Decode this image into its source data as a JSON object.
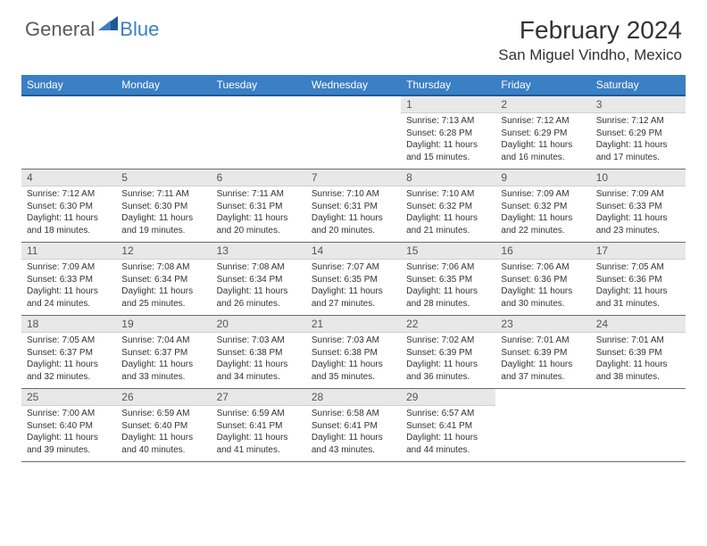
{
  "logo": {
    "general": "General",
    "blue": "Blue"
  },
  "header": {
    "month": "February 2024",
    "location": "San Miguel Vindho, Mexico"
  },
  "colors": {
    "header_bg": "#3b7fc4",
    "header_border": "#1d5a96",
    "daynum_bg": "#e8e8e8",
    "row_border": "#6b6b6b",
    "text": "#333333"
  },
  "day_names": [
    "Sunday",
    "Monday",
    "Tuesday",
    "Wednesday",
    "Thursday",
    "Friday",
    "Saturday"
  ],
  "weeks": [
    [
      {
        "empty": true
      },
      {
        "empty": true
      },
      {
        "empty": true
      },
      {
        "empty": true
      },
      {
        "num": "1",
        "sunrise": "7:13 AM",
        "sunset": "6:28 PM",
        "daylight": "11 hours and 15 minutes."
      },
      {
        "num": "2",
        "sunrise": "7:12 AM",
        "sunset": "6:29 PM",
        "daylight": "11 hours and 16 minutes."
      },
      {
        "num": "3",
        "sunrise": "7:12 AM",
        "sunset": "6:29 PM",
        "daylight": "11 hours and 17 minutes."
      }
    ],
    [
      {
        "num": "4",
        "sunrise": "7:12 AM",
        "sunset": "6:30 PM",
        "daylight": "11 hours and 18 minutes."
      },
      {
        "num": "5",
        "sunrise": "7:11 AM",
        "sunset": "6:30 PM",
        "daylight": "11 hours and 19 minutes."
      },
      {
        "num": "6",
        "sunrise": "7:11 AM",
        "sunset": "6:31 PM",
        "daylight": "11 hours and 20 minutes."
      },
      {
        "num": "7",
        "sunrise": "7:10 AM",
        "sunset": "6:31 PM",
        "daylight": "11 hours and 20 minutes."
      },
      {
        "num": "8",
        "sunrise": "7:10 AM",
        "sunset": "6:32 PM",
        "daylight": "11 hours and 21 minutes."
      },
      {
        "num": "9",
        "sunrise": "7:09 AM",
        "sunset": "6:32 PM",
        "daylight": "11 hours and 22 minutes."
      },
      {
        "num": "10",
        "sunrise": "7:09 AM",
        "sunset": "6:33 PM",
        "daylight": "11 hours and 23 minutes."
      }
    ],
    [
      {
        "num": "11",
        "sunrise": "7:09 AM",
        "sunset": "6:33 PM",
        "daylight": "11 hours and 24 minutes."
      },
      {
        "num": "12",
        "sunrise": "7:08 AM",
        "sunset": "6:34 PM",
        "daylight": "11 hours and 25 minutes."
      },
      {
        "num": "13",
        "sunrise": "7:08 AM",
        "sunset": "6:34 PM",
        "daylight": "11 hours and 26 minutes."
      },
      {
        "num": "14",
        "sunrise": "7:07 AM",
        "sunset": "6:35 PM",
        "daylight": "11 hours and 27 minutes."
      },
      {
        "num": "15",
        "sunrise": "7:06 AM",
        "sunset": "6:35 PM",
        "daylight": "11 hours and 28 minutes."
      },
      {
        "num": "16",
        "sunrise": "7:06 AM",
        "sunset": "6:36 PM",
        "daylight": "11 hours and 30 minutes."
      },
      {
        "num": "17",
        "sunrise": "7:05 AM",
        "sunset": "6:36 PM",
        "daylight": "11 hours and 31 minutes."
      }
    ],
    [
      {
        "num": "18",
        "sunrise": "7:05 AM",
        "sunset": "6:37 PM",
        "daylight": "11 hours and 32 minutes."
      },
      {
        "num": "19",
        "sunrise": "7:04 AM",
        "sunset": "6:37 PM",
        "daylight": "11 hours and 33 minutes."
      },
      {
        "num": "20",
        "sunrise": "7:03 AM",
        "sunset": "6:38 PM",
        "daylight": "11 hours and 34 minutes."
      },
      {
        "num": "21",
        "sunrise": "7:03 AM",
        "sunset": "6:38 PM",
        "daylight": "11 hours and 35 minutes."
      },
      {
        "num": "22",
        "sunrise": "7:02 AM",
        "sunset": "6:39 PM",
        "daylight": "11 hours and 36 minutes."
      },
      {
        "num": "23",
        "sunrise": "7:01 AM",
        "sunset": "6:39 PM",
        "daylight": "11 hours and 37 minutes."
      },
      {
        "num": "24",
        "sunrise": "7:01 AM",
        "sunset": "6:39 PM",
        "daylight": "11 hours and 38 minutes."
      }
    ],
    [
      {
        "num": "25",
        "sunrise": "7:00 AM",
        "sunset": "6:40 PM",
        "daylight": "11 hours and 39 minutes."
      },
      {
        "num": "26",
        "sunrise": "6:59 AM",
        "sunset": "6:40 PM",
        "daylight": "11 hours and 40 minutes."
      },
      {
        "num": "27",
        "sunrise": "6:59 AM",
        "sunset": "6:41 PM",
        "daylight": "11 hours and 41 minutes."
      },
      {
        "num": "28",
        "sunrise": "6:58 AM",
        "sunset": "6:41 PM",
        "daylight": "11 hours and 43 minutes."
      },
      {
        "num": "29",
        "sunrise": "6:57 AM",
        "sunset": "6:41 PM",
        "daylight": "11 hours and 44 minutes."
      },
      {
        "empty": true
      },
      {
        "empty": true
      }
    ]
  ]
}
